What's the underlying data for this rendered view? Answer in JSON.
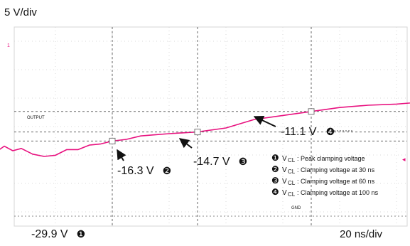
{
  "chart_data": {
    "type": "line",
    "title": "",
    "xlabel": "",
    "ylabel": "",
    "scale_y": "5 V/div",
    "scale_x": "20 ns/div",
    "grid": true,
    "trace_color": "#e8117f",
    "trace_label": "OUTPUT",
    "ground_marker": "GND",
    "unit_y": "V",
    "unit_x": "ns",
    "x": [
      -54,
      -49.5,
      -47.5,
      -47,
      -46.6,
      -46,
      -45.4,
      -45,
      -44.6,
      -42,
      -38,
      -35,
      -32,
      -28,
      -24,
      -20,
      -16,
      -12,
      -8,
      -4,
      0,
      5,
      10,
      15,
      20,
      30,
      40,
      50,
      60,
      70,
      80,
      90,
      100,
      110,
      120,
      130,
      140,
      150,
      160,
      166
    ],
    "values": [
      0.6,
      0.6,
      0.4,
      -18,
      -29.9,
      -22,
      -18,
      -20,
      -16.8,
      -18.6,
      -17.2,
      -18,
      -17.6,
      -18.6,
      -19.0,
      -18.8,
      -17.8,
      -17.8,
      -17.0,
      -16.8,
      -16.3,
      -16.0,
      -15.4,
      -15.2,
      -15.0,
      -14.7,
      -14.0,
      -12.5,
      -11.8,
      -11.1,
      -10.4,
      -10.0,
      -9.8,
      -9.4,
      -9.2,
      -9.0,
      -8.8,
      -8.6,
      -8.4,
      -8.4
    ],
    "annotations": [
      {
        "id": "1",
        "label": "-29.9 V",
        "x": -46.6,
        "y": -29.9
      },
      {
        "id": "2",
        "label": "-16.3 V",
        "x": 0,
        "y": -16.3
      },
      {
        "id": "3",
        "label": "-14.7 V",
        "x": 30,
        "y": -14.7
      },
      {
        "id": "4",
        "label": "-11.1 V",
        "x": 70,
        "y": -11.1
      }
    ],
    "legend": [
      {
        "num": "1",
        "text": "Peak clamping voltage"
      },
      {
        "num": "2",
        "text": "Clamping voltage at 30 ns"
      },
      {
        "num": "3",
        "text": "Clamping voltage at 60 ns"
      },
      {
        "num": "4",
        "text": "Clamping voltage at 100 ns"
      }
    ],
    "legend_prefix": "V",
    "legend_sub": "CL",
    "marker_glyphs": [
      "❶",
      "❷",
      "❸",
      "❹"
    ]
  }
}
